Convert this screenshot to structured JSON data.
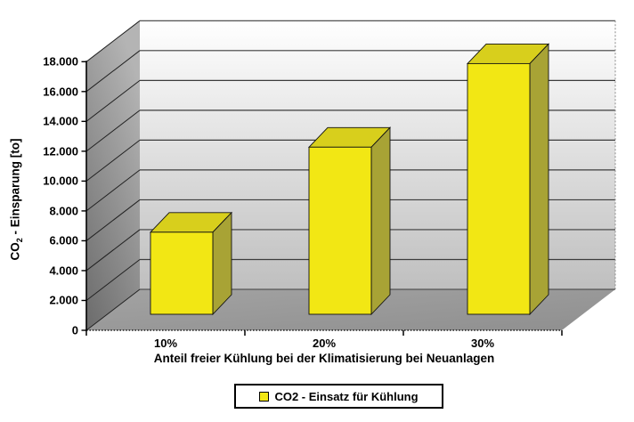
{
  "chart_data": {
    "type": "bar",
    "style": "3d-column",
    "title": "",
    "categories": [
      "10%",
      "20%",
      "30%"
    ],
    "series": [
      {
        "name": "CO2 - Einsatz für Kühlung",
        "values": [
          5500,
          11200,
          16800
        ]
      }
    ],
    "xlabel": "Anteil freier Kühlung bei der Klimatisierung bei Neuanlagen",
    "ylabel": "CO2 - Einsparung [to]",
    "ylabel_parts": {
      "prefix": "CO",
      "sub": "2",
      "suffix": " - Einsparung [to]"
    },
    "ylim": [
      0,
      18000
    ],
    "ytick_values": [
      0,
      2000,
      4000,
      6000,
      8000,
      10000,
      12000,
      14000,
      16000,
      18000
    ],
    "ytick_labels": [
      "0",
      "2.000",
      "4.000",
      "6.000",
      "8.000",
      "10.000",
      "12.000",
      "14.000",
      "16.000",
      "18.000"
    ],
    "grid": true,
    "legend_position": "bottom",
    "legend_label": "CO2 - Einsatz für Kühlung",
    "colors": {
      "bar_front": "#f2e714",
      "bar_top": "#d8cf1c",
      "bar_side": "#a8a335",
      "back_wall_top": "#ffffff",
      "back_wall_bottom": "#bfbfbf",
      "side_wall_top": "#b4b4b4",
      "side_wall_bottom": "#6e6e6e",
      "floor_light": "#a3a3a3",
      "floor_dark": "#8f8f8f",
      "gridline": "#3c3c3c",
      "axis": "#000000"
    }
  }
}
